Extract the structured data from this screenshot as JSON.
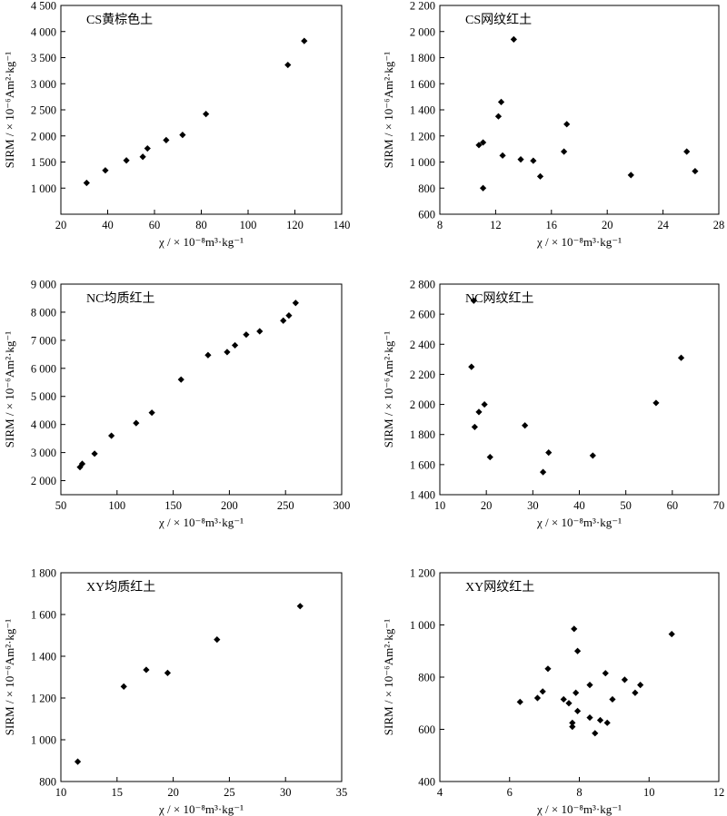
{
  "chart_data": [
    {
      "type": "scatter",
      "title": "CS黄棕色土",
      "xlabel": "χ / × 10⁻⁸m³·kg⁻¹",
      "ylabel": "SIRM / × 10⁻⁶Am²·kg⁻¹",
      "xlim": [
        20,
        140
      ],
      "ylim": [
        500,
        4500
      ],
      "xticks": [
        20,
        40,
        60,
        80,
        100,
        120,
        140
      ],
      "xtick_labels": [
        "20",
        "40",
        "60",
        "80",
        "100",
        "120",
        "140"
      ],
      "yticks": [
        1000,
        1500,
        2000,
        2500,
        3000,
        3500,
        4000,
        4500
      ],
      "ytick_labels": [
        "1 000",
        "1 500",
        "2 000",
        "2 500",
        "3 000",
        "3 500",
        "4 000",
        "4 500"
      ],
      "points": [
        [
          31,
          1100
        ],
        [
          39,
          1340
        ],
        [
          48,
          1530
        ],
        [
          55,
          1600
        ],
        [
          57,
          1760
        ],
        [
          65,
          1920
        ],
        [
          72,
          2020
        ],
        [
          82,
          2420
        ],
        [
          117,
          3360
        ],
        [
          124,
          3820
        ]
      ]
    },
    {
      "type": "scatter",
      "title": "CS网纹红土",
      "xlabel": "χ / × 10⁻⁸m³·kg⁻¹",
      "ylabel": "SIRM / × 10⁻⁶Am²·kg⁻¹",
      "xlim": [
        8,
        28
      ],
      "ylim": [
        600,
        2200
      ],
      "xticks": [
        8,
        12,
        16,
        20,
        24,
        28
      ],
      "xtick_labels": [
        "8",
        "12",
        "16",
        "20",
        "24",
        "28"
      ],
      "yticks": [
        600,
        800,
        1000,
        1200,
        1400,
        1600,
        1800,
        2000,
        2200
      ],
      "ytick_labels": [
        "600",
        "800",
        "1 000",
        "1 200",
        "1 400",
        "1 600",
        "1 800",
        "2 000",
        "2 200"
      ],
      "points": [
        [
          10.8,
          1130
        ],
        [
          11.1,
          1150
        ],
        [
          11.1,
          800
        ],
        [
          12.2,
          1350
        ],
        [
          12.4,
          1460
        ],
        [
          12.5,
          1050
        ],
        [
          13.3,
          1940
        ],
        [
          13.8,
          1020
        ],
        [
          14.7,
          1010
        ],
        [
          15.2,
          890
        ],
        [
          16.9,
          1080
        ],
        [
          17.1,
          1290
        ],
        [
          21.7,
          900
        ],
        [
          25.7,
          1080
        ],
        [
          26.3,
          930
        ]
      ]
    },
    {
      "type": "scatter",
      "title": "NC均质红土",
      "xlabel": "χ / × 10⁻⁸m³·kg⁻¹",
      "ylabel": "SIRM / × 10⁻⁶Am²·kg⁻¹",
      "xlim": [
        50,
        300
      ],
      "ylim": [
        1500,
        9000
      ],
      "xticks": [
        50,
        100,
        150,
        200,
        250,
        300
      ],
      "xtick_labels": [
        "50",
        "100",
        "150",
        "200",
        "250",
        "300"
      ],
      "yticks": [
        2000,
        3000,
        4000,
        5000,
        6000,
        7000,
        8000,
        9000
      ],
      "ytick_labels": [
        "2 000",
        "3 000",
        "4 000",
        "5 000",
        "6 000",
        "7 000",
        "8 000",
        "9 000"
      ],
      "points": [
        [
          67,
          2480
        ],
        [
          69,
          2600
        ],
        [
          80,
          2960
        ],
        [
          95,
          3600
        ],
        [
          117,
          4050
        ],
        [
          131,
          4420
        ],
        [
          157,
          5600
        ],
        [
          181,
          6470
        ],
        [
          198,
          6580
        ],
        [
          205,
          6820
        ],
        [
          215,
          7200
        ],
        [
          227,
          7320
        ],
        [
          248,
          7700
        ],
        [
          253,
          7880
        ],
        [
          259,
          8330
        ]
      ]
    },
    {
      "type": "scatter",
      "title": "NC网纹红土",
      "xlabel": "χ / × 10⁻⁸m³·kg⁻¹",
      "ylabel": "SIRM / × 10⁻⁶Am²·kg⁻¹",
      "xlim": [
        10,
        70
      ],
      "ylim": [
        1400,
        2800
      ],
      "xticks": [
        10,
        20,
        30,
        40,
        50,
        60,
        70
      ],
      "xtick_labels": [
        "10",
        "20",
        "30",
        "40",
        "50",
        "60",
        "70"
      ],
      "yticks": [
        1400,
        1600,
        1800,
        2000,
        2200,
        2400,
        2600,
        2800
      ],
      "ytick_labels": [
        "1 400",
        "1 600",
        "1 800",
        "2 000",
        "2 200",
        "2 400",
        "2 600",
        "2 800"
      ],
      "points": [
        [
          16.8,
          2250
        ],
        [
          17.3,
          2690
        ],
        [
          17.5,
          1850
        ],
        [
          18.4,
          1950
        ],
        [
          19.6,
          2000
        ],
        [
          20.8,
          1650
        ],
        [
          28.3,
          1860
        ],
        [
          32.2,
          1550
        ],
        [
          33.4,
          1680
        ],
        [
          42.9,
          1660
        ],
        [
          56.5,
          2010
        ],
        [
          61.9,
          2310
        ]
      ]
    },
    {
      "type": "scatter",
      "title": "XY均质红土",
      "xlabel": "χ / × 10⁻⁸m³·kg⁻¹",
      "ylabel": "SIRM / × 10⁻⁶Am²·kg⁻¹",
      "xlim": [
        10,
        35
      ],
      "ylim": [
        800,
        1800
      ],
      "xticks": [
        10,
        15,
        20,
        25,
        30,
        35
      ],
      "xtick_labels": [
        "10",
        "15",
        "20",
        "25",
        "30",
        "35"
      ],
      "yticks": [
        800,
        1000,
        1200,
        1400,
        1600,
        1800
      ],
      "ytick_labels": [
        "800",
        "1 000",
        "1 200",
        "1 400",
        "1 600",
        "1 800"
      ],
      "points": [
        [
          11.5,
          895
        ],
        [
          15.6,
          1255
        ],
        [
          17.6,
          1335
        ],
        [
          19.5,
          1320
        ],
        [
          23.9,
          1480
        ],
        [
          31.3,
          1640
        ]
      ]
    },
    {
      "type": "scatter",
      "title": "XY网纹红土",
      "xlabel": "χ / × 10⁻⁸m³·kg⁻¹",
      "ylabel": "SIRM / × 10⁻⁶Am²·kg⁻¹",
      "xlim": [
        4,
        12
      ],
      "ylim": [
        400,
        1200
      ],
      "xticks": [
        4,
        6,
        8,
        10,
        12
      ],
      "xtick_labels": [
        "4",
        "6",
        "8",
        "10",
        "12"
      ],
      "yticks": [
        400,
        600,
        800,
        1000,
        1200
      ],
      "ytick_labels": [
        "400",
        "600",
        "800",
        "1 000",
        "1 200"
      ],
      "points": [
        [
          6.3,
          705
        ],
        [
          6.8,
          720
        ],
        [
          6.95,
          745
        ],
        [
          7.1,
          832
        ],
        [
          7.55,
          715
        ],
        [
          7.7,
          700
        ],
        [
          7.8,
          610
        ],
        [
          7.8,
          625
        ],
        [
          7.85,
          985
        ],
        [
          7.95,
          900
        ],
        [
          7.9,
          740
        ],
        [
          7.95,
          670
        ],
        [
          8.3,
          770
        ],
        [
          8.3,
          645
        ],
        [
          8.45,
          585
        ],
        [
          8.6,
          635
        ],
        [
          8.75,
          815
        ],
        [
          8.8,
          625
        ],
        [
          8.95,
          715
        ],
        [
          9.3,
          790
        ],
        [
          9.6,
          740
        ],
        [
          9.75,
          770
        ],
        [
          10.65,
          965
        ]
      ]
    }
  ]
}
